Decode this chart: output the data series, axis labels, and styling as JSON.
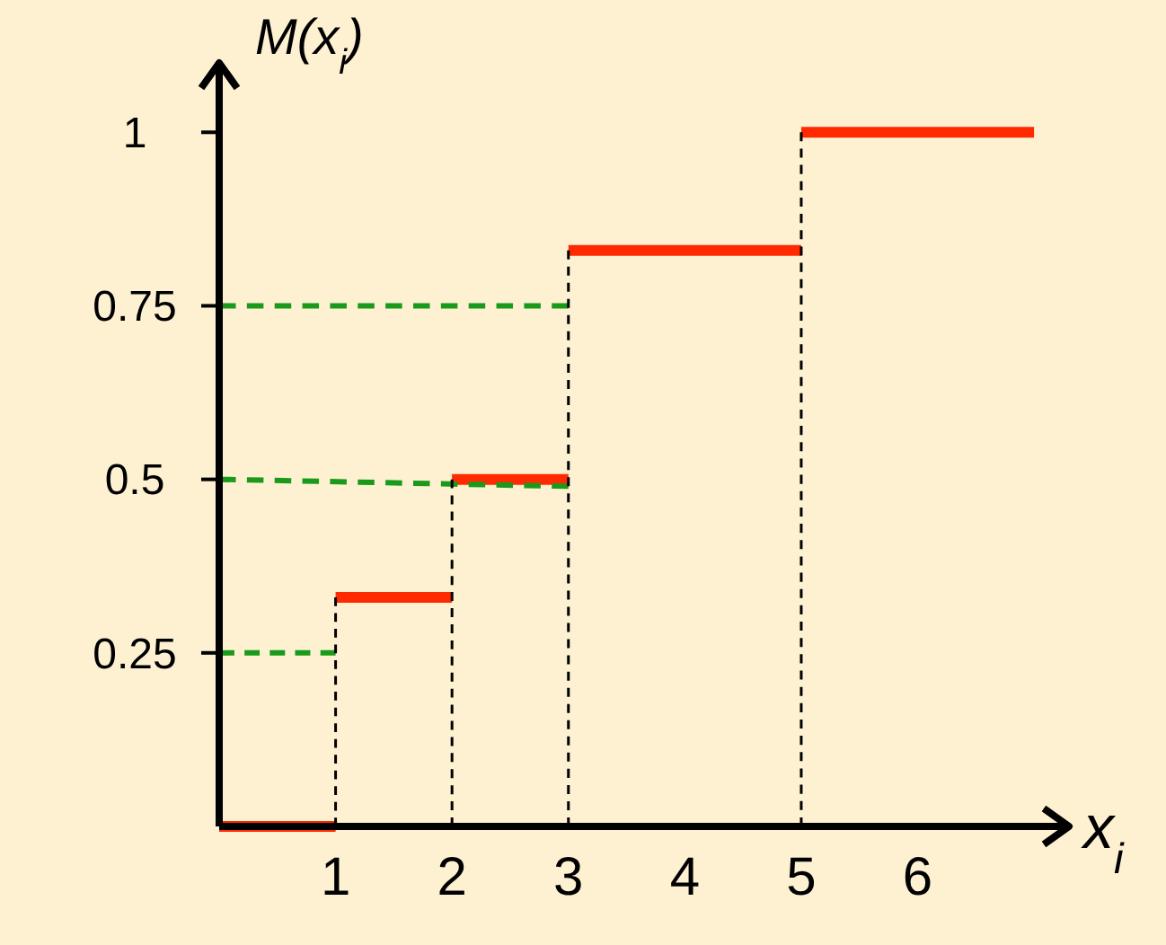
{
  "chart_data": {
    "type": "step",
    "xlabel": "x$_{i}$",
    "ylabel": "M(x$_{i}$)",
    "xlim": [
      0,
      7.3
    ],
    "ylim": [
      0,
      1.1
    ],
    "xticks": [
      1,
      2,
      3,
      4,
      5,
      6
    ],
    "yticks": [
      0.25,
      0.5,
      0.75,
      1
    ],
    "series": [
      {
        "color": "#ff2a00",
        "line_style": "solid",
        "x": [
          0,
          1,
          2,
          3,
          5,
          7
        ],
        "values": [
          0,
          0.33,
          0.5,
          0.83,
          1,
          1
        ]
      },
      {
        "type": "line",
        "color": "#1a9a1a",
        "line_style": "dashed",
        "x": [
          0,
          1
        ],
        "values": [
          0.25,
          0.25
        ]
      },
      {
        "type": "line",
        "color": "#1a9a1a",
        "line_style": "dashed",
        "x": [
          0,
          3
        ],
        "values": [
          0.5,
          0.49
        ]
      },
      {
        "type": "line",
        "color": "#1a9a1a",
        "line_style": "dashed",
        "x": [
          0,
          3
        ],
        "values": [
          0.75,
          0.75
        ]
      },
      {
        "type": "line",
        "color": "#000000",
        "line_style": "dashed",
        "x": [
          1,
          1
        ],
        "values": [
          0,
          0.33
        ]
      },
      {
        "type": "line",
        "color": "#000000",
        "line_style": "dashed",
        "x": [
          2,
          2
        ],
        "values": [
          0,
          0.5
        ]
      },
      {
        "type": "line",
        "color": "#000000",
        "line_style": "dashed",
        "x": [
          3,
          3
        ],
        "values": [
          0,
          0.83
        ]
      },
      {
        "type": "line",
        "color": "#000000",
        "line_style": "dashed",
        "x": [
          5,
          5
        ],
        "values": [
          0,
          1
        ]
      }
    ]
  }
}
